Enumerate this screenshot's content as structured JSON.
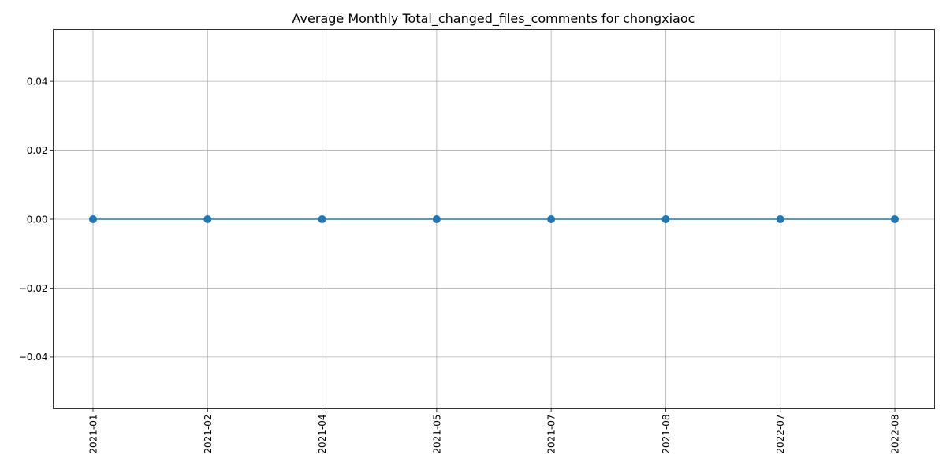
{
  "chart_data": {
    "type": "line",
    "title": "Average Monthly Total_changed_files_comments for chongxiaoc",
    "xlabel": "",
    "ylabel": "",
    "categories": [
      "2021-01",
      "2021-02",
      "2021-04",
      "2021-05",
      "2021-07",
      "2021-08",
      "2022-07",
      "2022-08"
    ],
    "series": [
      {
        "values": [
          0,
          0,
          0,
          0,
          0,
          0,
          0,
          0
        ],
        "color": "#1f77b4",
        "marker": "circle"
      }
    ],
    "ylim": [
      -0.055,
      0.055
    ],
    "yticks": [
      -0.04,
      -0.02,
      0.0,
      0.02,
      0.04
    ],
    "ytick_labels": [
      "−0.04",
      "−0.02",
      "0.00",
      "0.02",
      "0.04"
    ],
    "xtick_rotation": "vertical",
    "grid": true,
    "legend": "none"
  }
}
